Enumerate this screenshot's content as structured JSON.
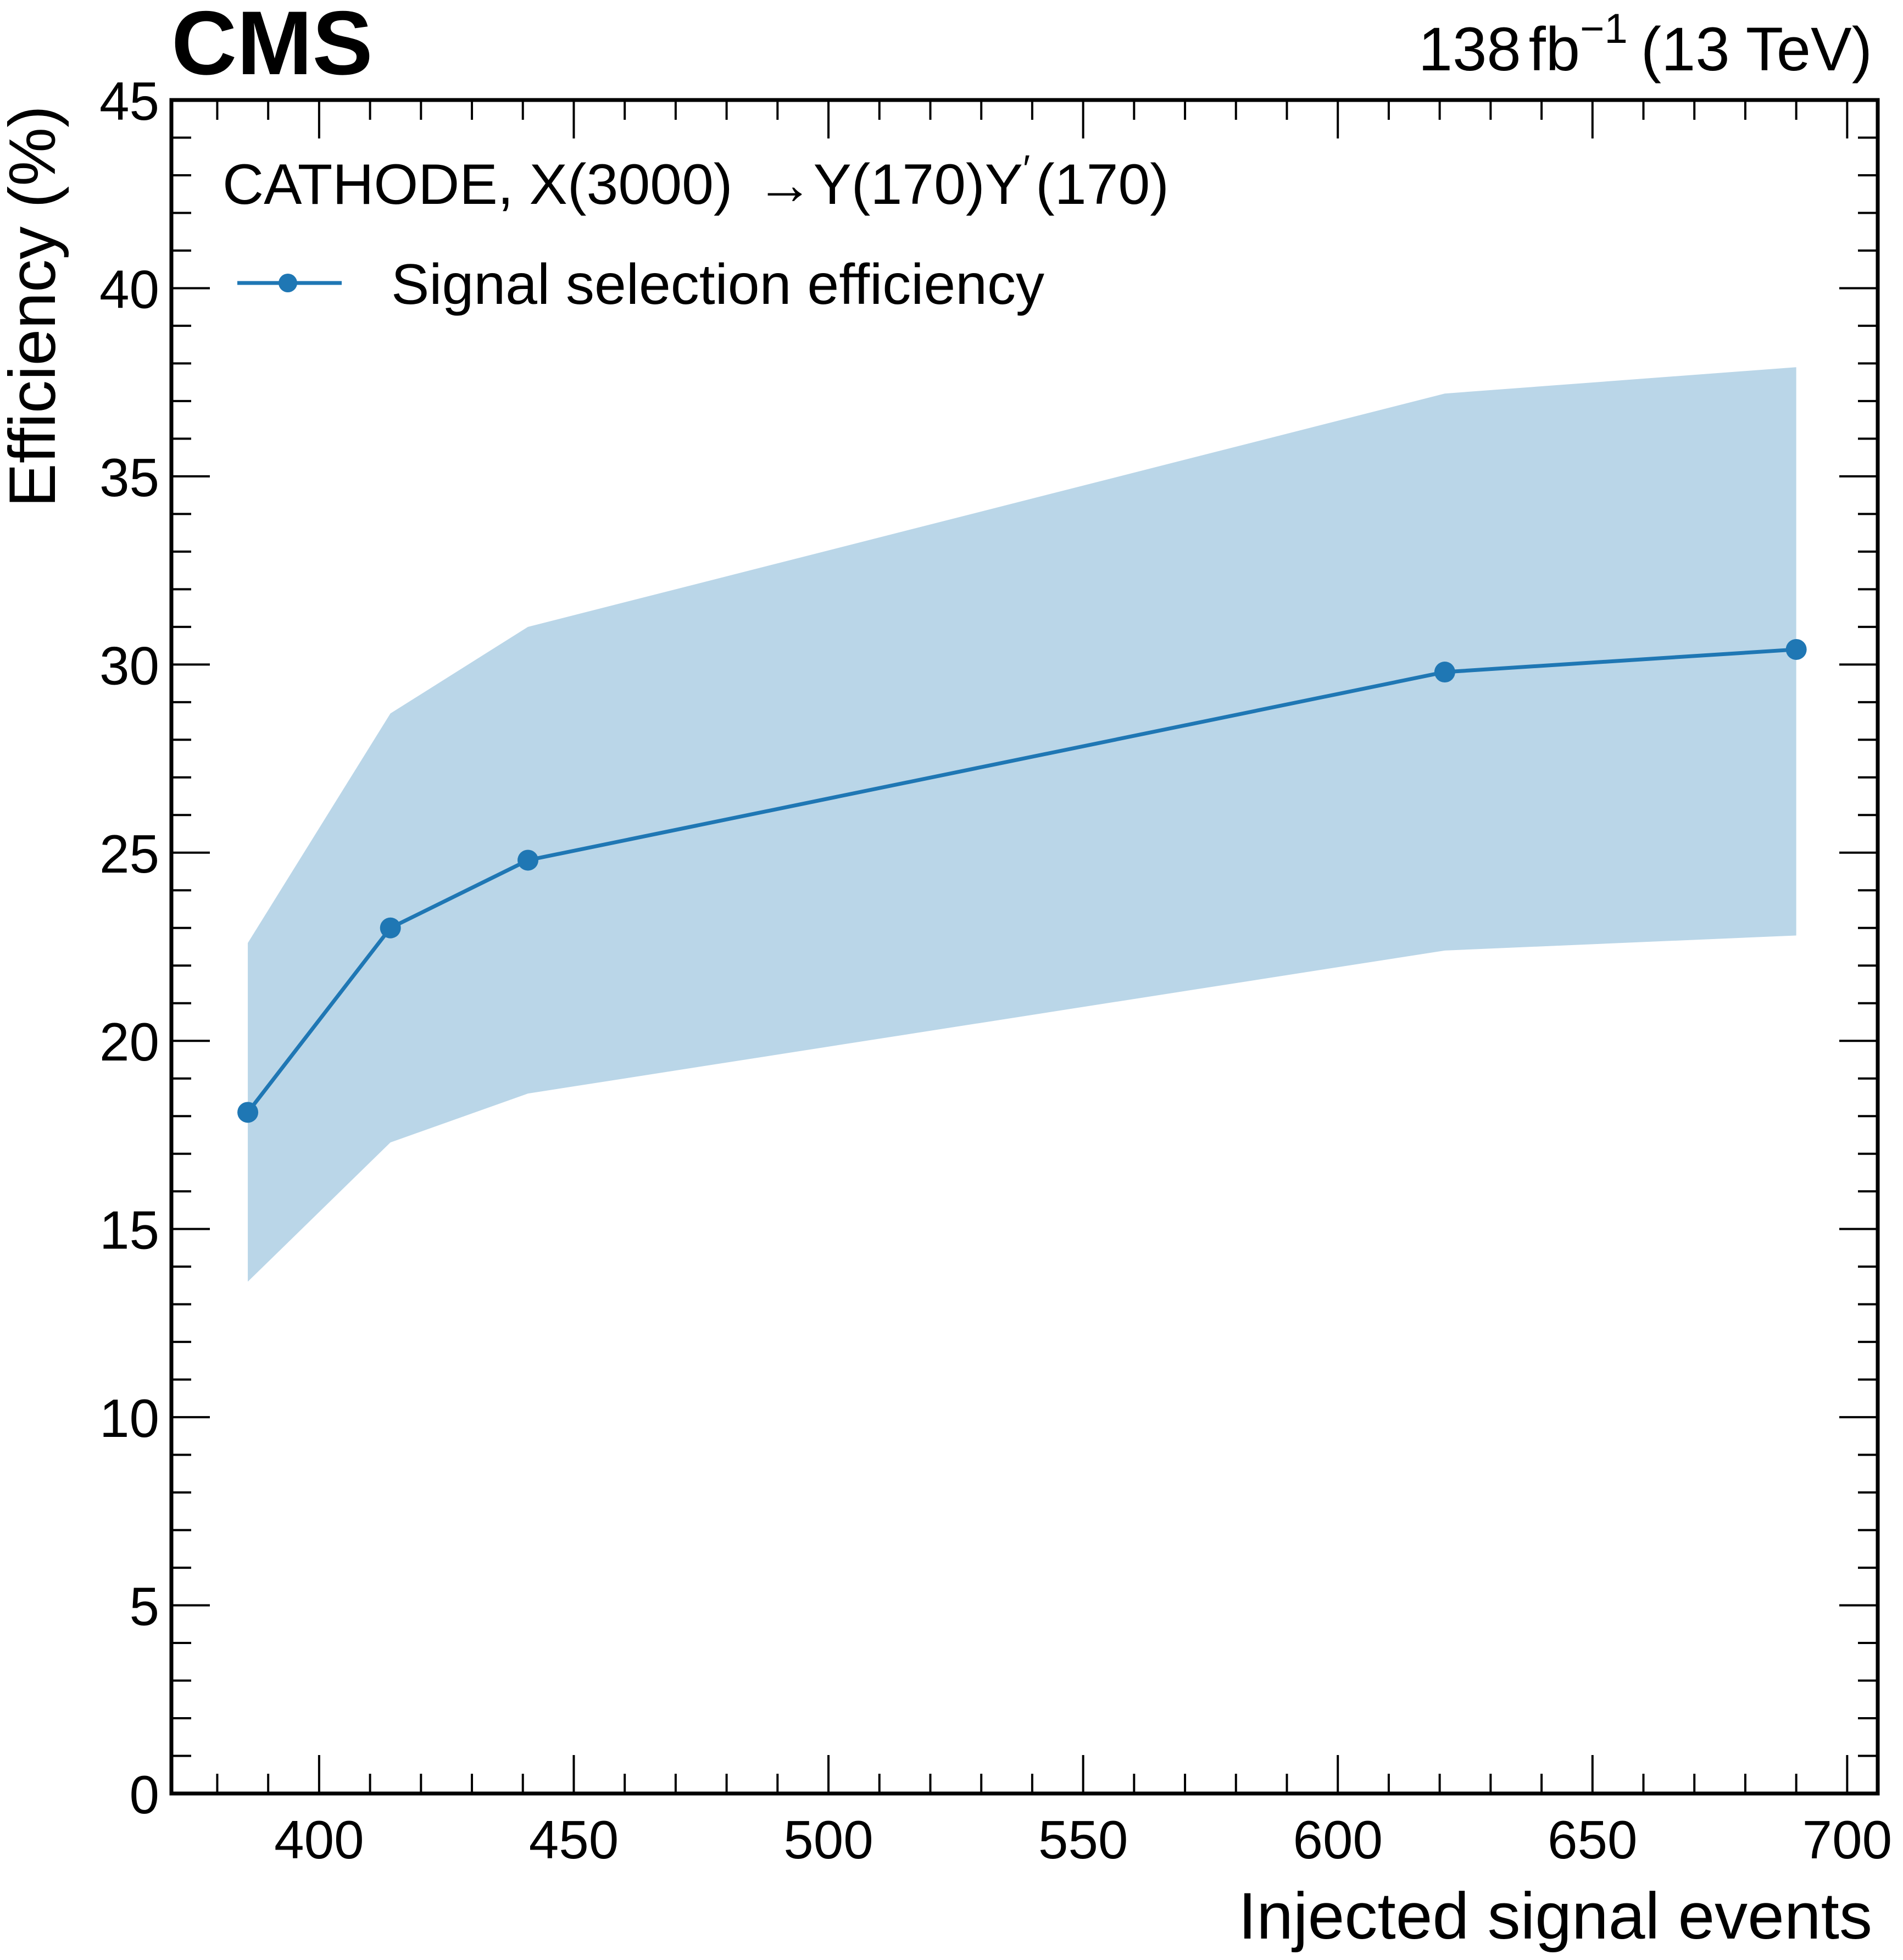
{
  "header": {
    "experiment": "CMS",
    "lumi_value": "138",
    "lumi_unit": "fb",
    "lumi_exp": "−1",
    "energy": "(13 TeV)"
  },
  "legend": {
    "process_prefix": "CATHODE, X(3000) ",
    "process_arrow": "→",
    "process_y": "Y(170)Y",
    "process_prime": "′",
    "process_suffix": "(170)",
    "series_label": "Signal selection efficiency"
  },
  "colors": {
    "line": "#1f77b4",
    "band": "#bad6e8",
    "frame": "#000000"
  },
  "chart_data": {
    "type": "line",
    "title": "",
    "xlabel": "Injected signal events",
    "ylabel": "Efficiency (%)",
    "xlim": [
      371,
      706
    ],
    "ylim": [
      0,
      45
    ],
    "xticks": [
      400,
      450,
      500,
      550,
      600,
      650,
      700
    ],
    "yticks": [
      0,
      5,
      10,
      15,
      20,
      25,
      30,
      35,
      40,
      45
    ],
    "series": [
      {
        "name": "Signal selection efficiency",
        "x": [
          386,
          414,
          441,
          621,
          690
        ],
        "y": [
          18.1,
          23.0,
          24.8,
          29.8,
          30.4
        ],
        "band_low": [
          13.6,
          17.3,
          18.6,
          22.4,
          22.8
        ],
        "band_high": [
          22.6,
          28.7,
          31.0,
          37.2,
          37.9
        ]
      }
    ]
  }
}
